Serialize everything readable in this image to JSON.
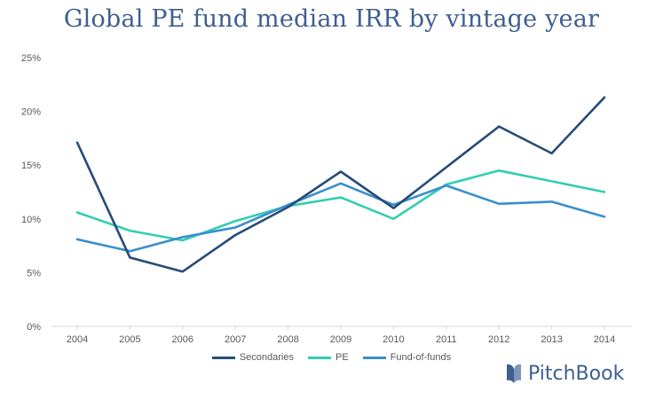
{
  "chart_data": {
    "type": "line",
    "title": "Global PE fund median IRR by vintage year",
    "xlabel": "",
    "ylabel": "",
    "categories": [
      "2004",
      "2005",
      "2006",
      "2007",
      "2008",
      "2009",
      "2010",
      "2011",
      "2012",
      "2013",
      "2014"
    ],
    "ylim": [
      0,
      25
    ],
    "yticks": [
      0,
      5,
      10,
      15,
      20,
      25
    ],
    "ytick_labels": [
      "0%",
      "5%",
      "10%",
      "15%",
      "20%",
      "25%"
    ],
    "grid": false,
    "legend_position": "bottom",
    "series": [
      {
        "name": "Secondaries",
        "color": "#264b78",
        "values": [
          17.1,
          6.4,
          5.1,
          8.5,
          11.1,
          14.4,
          11.0,
          14.8,
          18.6,
          16.1,
          21.3
        ]
      },
      {
        "name": "PE",
        "color": "#33cdb2",
        "values": [
          10.6,
          8.9,
          8.0,
          9.8,
          11.2,
          12.0,
          10.0,
          13.2,
          14.5,
          13.5,
          12.5
        ]
      },
      {
        "name": "Fund-of-funds",
        "color": "#3a8fcc",
        "values": [
          8.1,
          7.0,
          8.3,
          9.2,
          11.3,
          13.3,
          11.3,
          13.1,
          11.4,
          11.6,
          10.2
        ]
      }
    ]
  },
  "brand": {
    "name": "PitchBook",
    "icon": "pitchbook-logo-icon"
  }
}
